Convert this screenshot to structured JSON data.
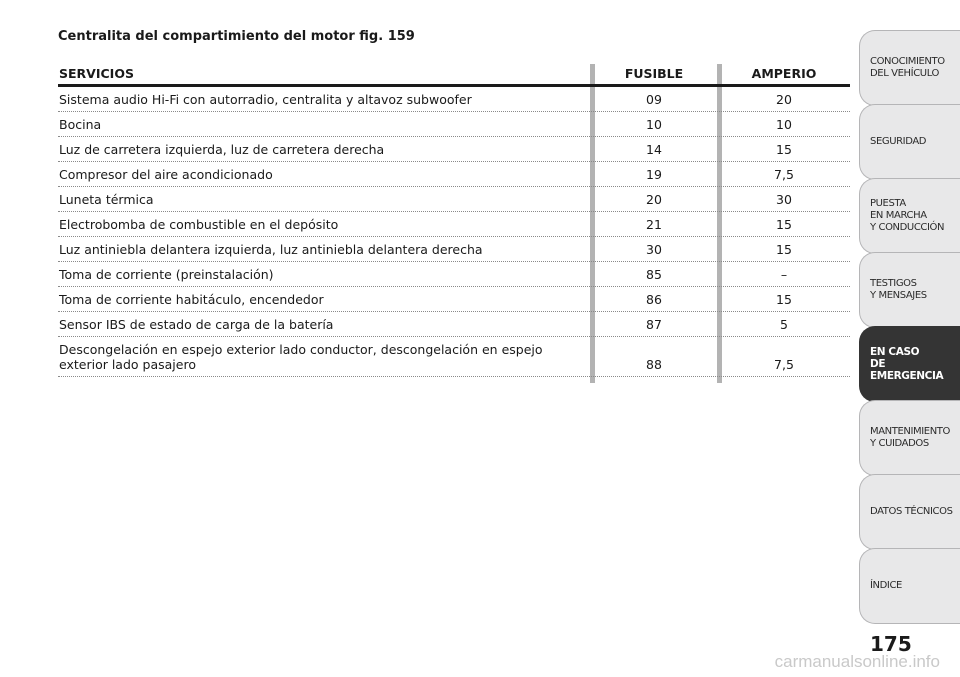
{
  "title": "Centralita del compartimiento del motor fig. 159",
  "table": {
    "headers": {
      "service": "SERVICIOS",
      "fuse": "FUSIBLE",
      "amp": "AMPERIO"
    },
    "rows": [
      {
        "service": "Sistema audio Hi-Fi con autorradio, centralita y altavoz subwoofer",
        "fuse": "09",
        "amp": "20"
      },
      {
        "service": "Bocina",
        "fuse": "10",
        "amp": "10"
      },
      {
        "service": "Luz de carretera izquierda, luz de carretera derecha",
        "fuse": "14",
        "amp": "15"
      },
      {
        "service": "Compresor del aire acondicionado",
        "fuse": "19",
        "amp": "7,5"
      },
      {
        "service": "Luneta térmica",
        "fuse": "20",
        "amp": "30"
      },
      {
        "service": "Electrobomba de combustible en el depósito",
        "fuse": "21",
        "amp": "15"
      },
      {
        "service": "Luz antiniebla delantera izquierda, luz antiniebla delantera derecha",
        "fuse": "30",
        "amp": "15"
      },
      {
        "service": "Toma de corriente (preinstalación)",
        "fuse": "85",
        "amp": "–"
      },
      {
        "service": "Toma de corriente habitáculo, encendedor",
        "fuse": "86",
        "amp": "15"
      },
      {
        "service": "Sensor IBS de estado de carga de la batería",
        "fuse": "87",
        "amp": "5"
      },
      {
        "service": "Descongelación en espejo exterior lado conductor, descongelación en espejo exterior lado pasajero",
        "fuse": "88",
        "amp": "7,5"
      }
    ]
  },
  "sidebar": {
    "tabs": [
      {
        "label": "CONOCIMIENTO\nDEL VEHÍCULO",
        "active": false
      },
      {
        "label": "SEGURIDAD",
        "active": false
      },
      {
        "label": "PUESTA\nEN MARCHA\nY CONDUCCIÓN",
        "active": false
      },
      {
        "label": "TESTIGOS\nY MENSAJES",
        "active": false
      },
      {
        "label": "EN CASO\nDE EMERGENCIA",
        "active": true
      },
      {
        "label": "MANTENIMIENTO\nY CUIDADOS",
        "active": false
      },
      {
        "label": "DATOS TÉCNICOS",
        "active": false
      },
      {
        "label": "ÍNDICE",
        "active": false
      }
    ]
  },
  "page_number": "175",
  "watermark": "carmanualsonline.info",
  "colors": {
    "active_tab": "#343434",
    "tab_bg": "#e8e8e9",
    "column_bar": "#b3b3b3"
  }
}
